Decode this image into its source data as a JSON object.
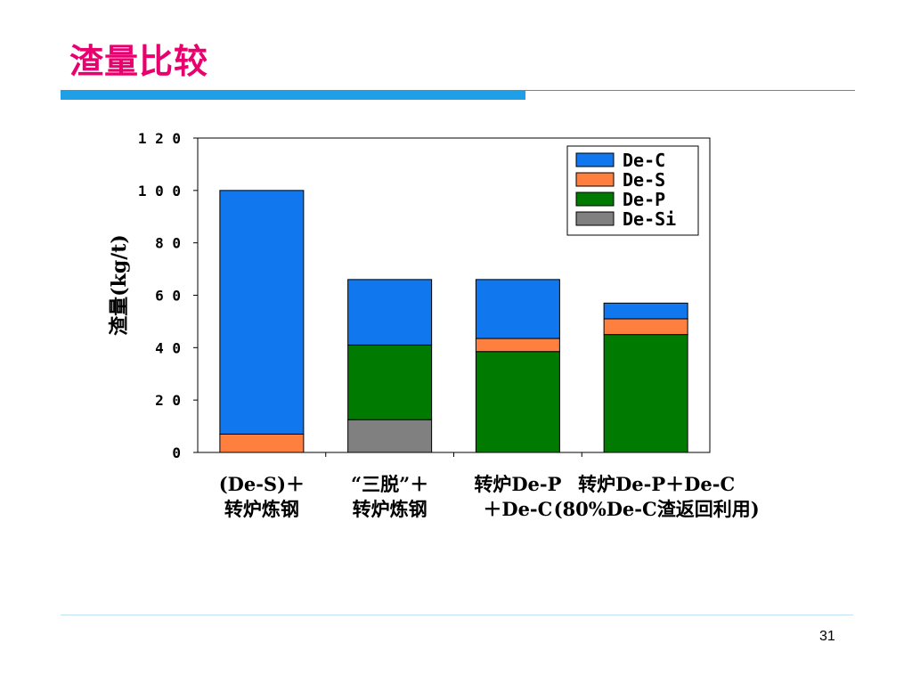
{
  "slide": {
    "title": "渣量比较",
    "page_number": "31"
  },
  "colors": {
    "title": "#e8006e",
    "rule": "#1f9fe6",
    "footer_rule": "#bfe3f5"
  },
  "chart_data": {
    "type": "bar",
    "stacked": true,
    "title": "",
    "xlabel": "",
    "ylabel": "渣量(kg/t)",
    "ylim": [
      0,
      120
    ],
    "yticks": [
      0,
      20,
      40,
      60,
      80,
      100,
      120
    ],
    "grid": false,
    "legend": "top-right",
    "categories": [
      [
        "(De-S)＋",
        "转炉炼钢"
      ],
      [
        "“三脱”＋",
        "转炉炼钢"
      ],
      [
        "转炉De-P",
        "＋De-C"
      ],
      [
        "转炉De-P＋De-C",
        "(80%De-C渣返回利用)"
      ]
    ],
    "series": [
      {
        "name": "De-Si",
        "color": "#808080",
        "values": [
          0,
          12.5,
          0,
          0
        ]
      },
      {
        "name": "De-P",
        "color": "#007a00",
        "values": [
          0,
          28.5,
          38.5,
          45
        ]
      },
      {
        "name": "De-S",
        "color": "#ff7f3f",
        "values": [
          7,
          0,
          5,
          6
        ]
      },
      {
        "name": "De-C",
        "color": "#1177ee",
        "values": [
          93,
          25,
          22.5,
          6
        ]
      }
    ],
    "legend_order": [
      "De-C",
      "De-S",
      "De-P",
      "De-Si"
    ]
  }
}
